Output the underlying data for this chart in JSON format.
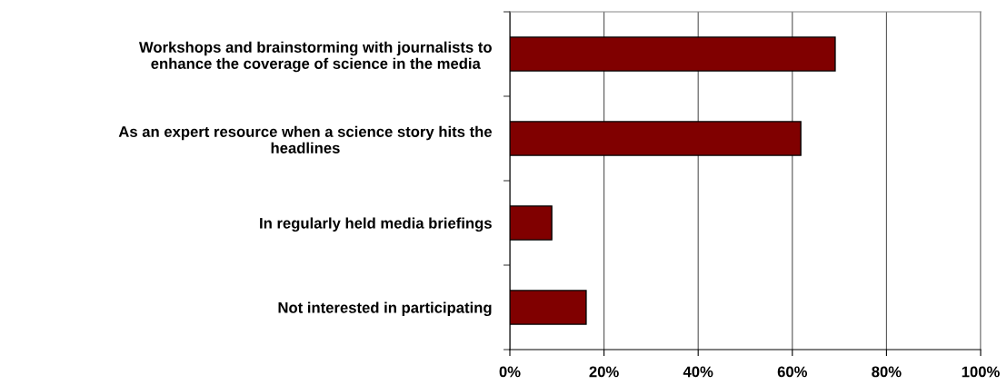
{
  "chart_data": {
    "type": "bar",
    "orientation": "horizontal",
    "categories": [
      "Workshops and brainstorming with journalists to\nenhance the coverage of science in the media",
      "As an expert resource when a science story hits the\nheadlines",
      "In regularly held media briefings",
      "Not interested in participating"
    ],
    "values": [
      69.1,
      61.8,
      8.9,
      16.2
    ],
    "color": "#800000",
    "xlim": [
      0,
      100
    ],
    "xticks": [
      {
        "value": 0,
        "label": "0%"
      },
      {
        "value": 20,
        "label": "20%"
      },
      {
        "value": 40,
        "label": "40%"
      },
      {
        "value": 60,
        "label": "60%"
      },
      {
        "value": 80,
        "label": "80%"
      },
      {
        "value": 100,
        "label": "100%"
      }
    ],
    "grid": "x",
    "legend": false
  }
}
